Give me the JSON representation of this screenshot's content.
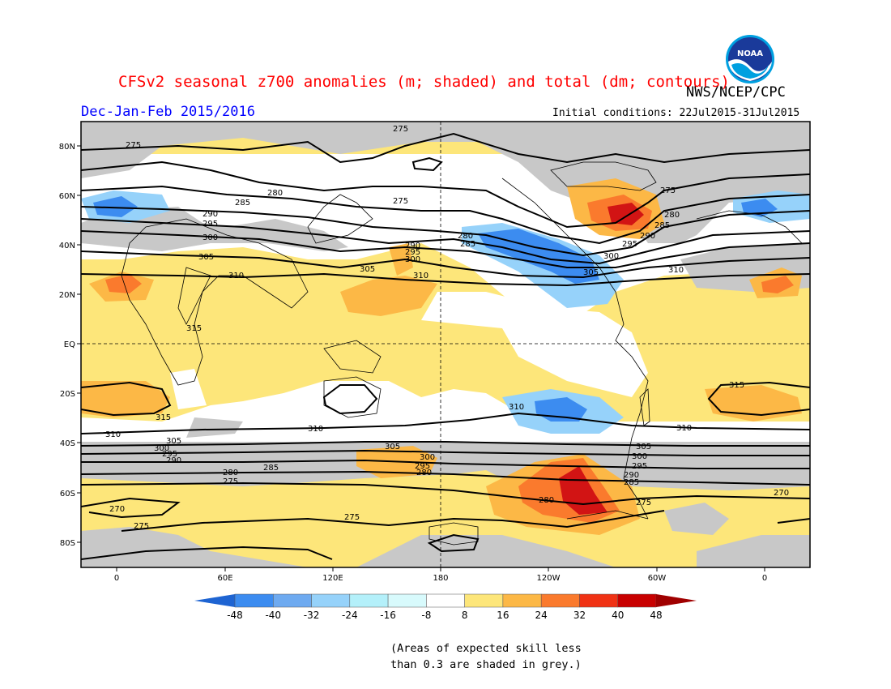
{
  "header": {
    "title": "CFSv2 seasonal z700 anomalies (m; shaded) and total (dm; contours)",
    "agency": "NWS/NCEP/CPC",
    "period": "Dec-Jan-Feb 2015/2016",
    "initial_conditions": "Initial conditions: 22Jul2015-31Jul2015",
    "logo_text": "NOAA"
  },
  "map": {
    "lat_labels": [
      "80N",
      "60N",
      "40N",
      "20N",
      "EQ",
      "20S",
      "40S",
      "60S",
      "80S"
    ],
    "lon_labels": [
      "0",
      "60E",
      "120E",
      "180",
      "120W",
      "60W",
      "0"
    ],
    "contour_labels": [
      "275",
      "280",
      "285",
      "290",
      "295",
      "300",
      "305",
      "310",
      "315",
      "270"
    ]
  },
  "legend": {
    "labels": [
      "-48",
      "-40",
      "-32",
      "-24",
      "-16",
      "-8",
      "8",
      "16",
      "24",
      "32",
      "40",
      "48"
    ],
    "colors": [
      "#1e6eeb",
      "#3c8cf0",
      "#6eaaf0",
      "#96d2fa",
      "#b4f0fa",
      "#ffffff",
      "#fde67a",
      "#fcb846",
      "#fa7a2d",
      "#f03214",
      "#c80000",
      "#a00000"
    ],
    "low_color": "#1e64d2",
    "high_color": "#a00000"
  },
  "footnote": {
    "line1": "(Areas of expected skill less",
    "line2": "than 0.3 are shaded in grey.)"
  },
  "colors": {
    "title": "#ff0000",
    "period": "#0000ff",
    "grey_mask": "#c8c8c8",
    "base_positive": "#fde67a"
  }
}
